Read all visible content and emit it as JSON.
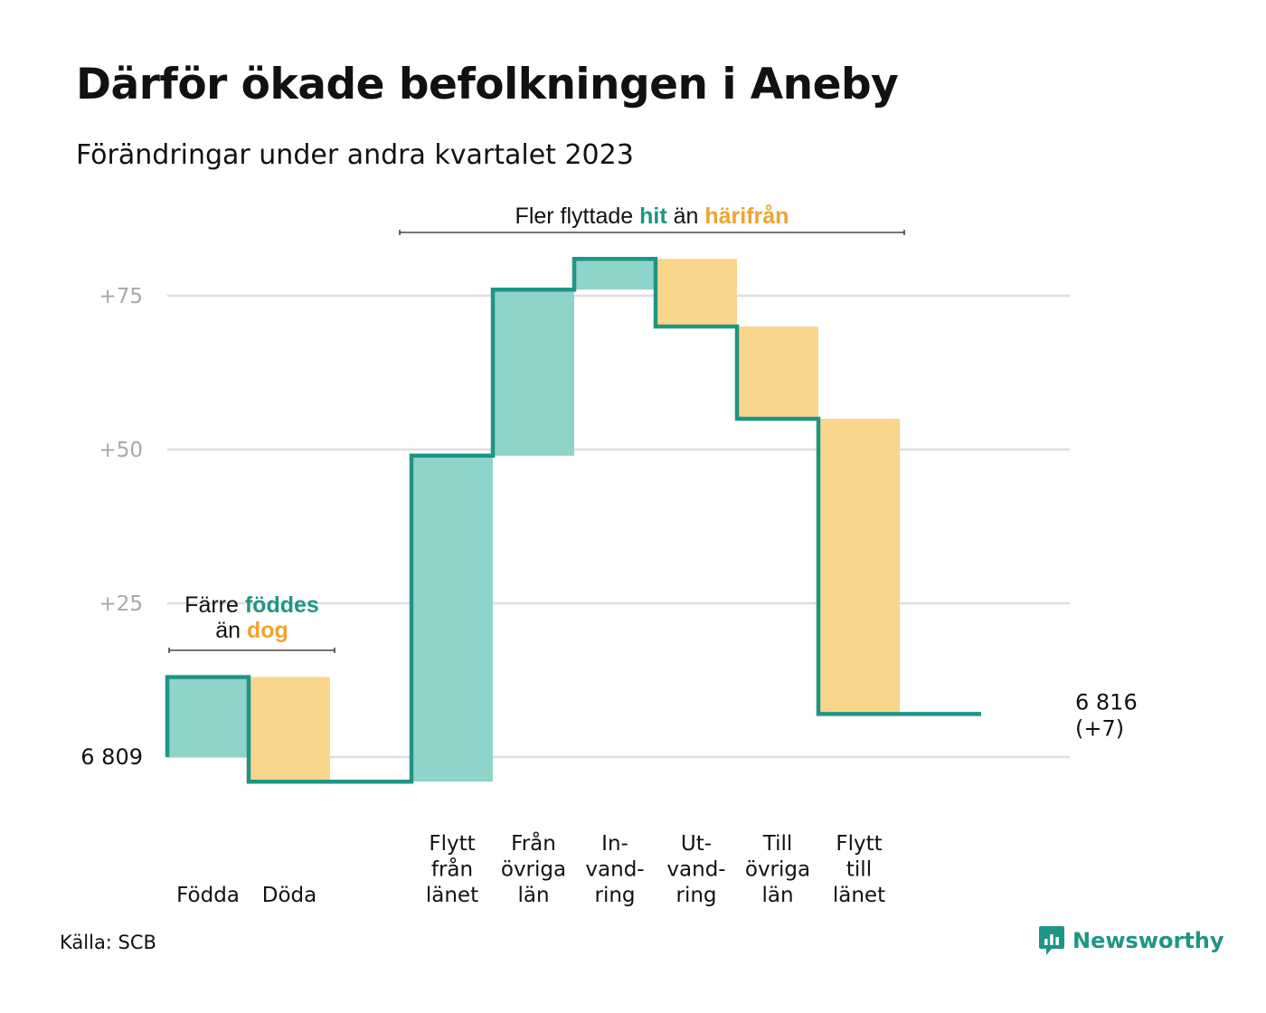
{
  "header": {
    "title": "Därför ökade befolkningen i Aneby",
    "subtitle": "Förändringar under andra kvartalet 2023"
  },
  "footer": {
    "source": "Källa: SCB",
    "brand": "Newsworthy",
    "brand_icon": "newsworthy-logo-icon"
  },
  "colors": {
    "increase_fill": "#8ed4cb",
    "decrease_fill": "#fad58c",
    "line": "#1e9585",
    "highlight_teal": "#1e9585",
    "highlight_orange": "#f0a32e",
    "grid": "#dedede",
    "tick_text": "#a8a8a8"
  },
  "chart_data": {
    "type": "waterfall",
    "title": "Därför ökade befolkningen i Aneby",
    "subtitle": "Förändringar under andra kvartalet 2023",
    "start": {
      "label": "6  809",
      "value": 0
    },
    "end": {
      "label": "6 816",
      "change_label": "(+7)",
      "value": 7
    },
    "y_ticks": [
      {
        "value": 25,
        "label": "+25"
      },
      {
        "value": 50,
        "label": "+50"
      },
      {
        "value": 75,
        "label": "+75"
      }
    ],
    "ylim": [
      -5,
      82
    ],
    "grid": true,
    "steps": [
      {
        "lines": [
          "Födda"
        ],
        "delta": 13
      },
      {
        "lines": [
          "Döda"
        ],
        "delta": -17
      },
      {
        "lines": [],
        "delta": 0
      },
      {
        "lines": [
          "Flytt",
          "från",
          "länet"
        ],
        "delta": 53
      },
      {
        "lines": [
          "Från",
          "övriga",
          "län"
        ],
        "delta": 27
      },
      {
        "lines": [
          "In-",
          "vand-",
          "ring"
        ],
        "delta": 5
      },
      {
        "lines": [
          "Ut-",
          "vand-",
          "ring"
        ],
        "delta": -11
      },
      {
        "lines": [
          "Till",
          "övriga",
          "län"
        ],
        "delta": -15
      },
      {
        "lines": [
          "Flytt",
          "till",
          "länet"
        ],
        "delta": -48
      },
      {
        "lines": [],
        "delta": 0
      }
    ],
    "annotations": [
      {
        "from_step": 0,
        "to_step": 1,
        "line1": [
          {
            "text": "Färre ",
            "style": "plain"
          },
          {
            "text": "föddes",
            "style": "teal"
          }
        ],
        "line2": [
          {
            "text": "än ",
            "style": "plain"
          },
          {
            "text": "dog",
            "style": "orange"
          }
        ]
      },
      {
        "from_step": 3,
        "to_step": 8,
        "line1": [
          {
            "text": "Fler flyttade ",
            "style": "plain"
          },
          {
            "text": "hit",
            "style": "teal"
          },
          {
            "text": "  än ",
            "style": "plain"
          },
          {
            "text": "härifrån",
            "style": "orange"
          }
        ]
      }
    ]
  }
}
